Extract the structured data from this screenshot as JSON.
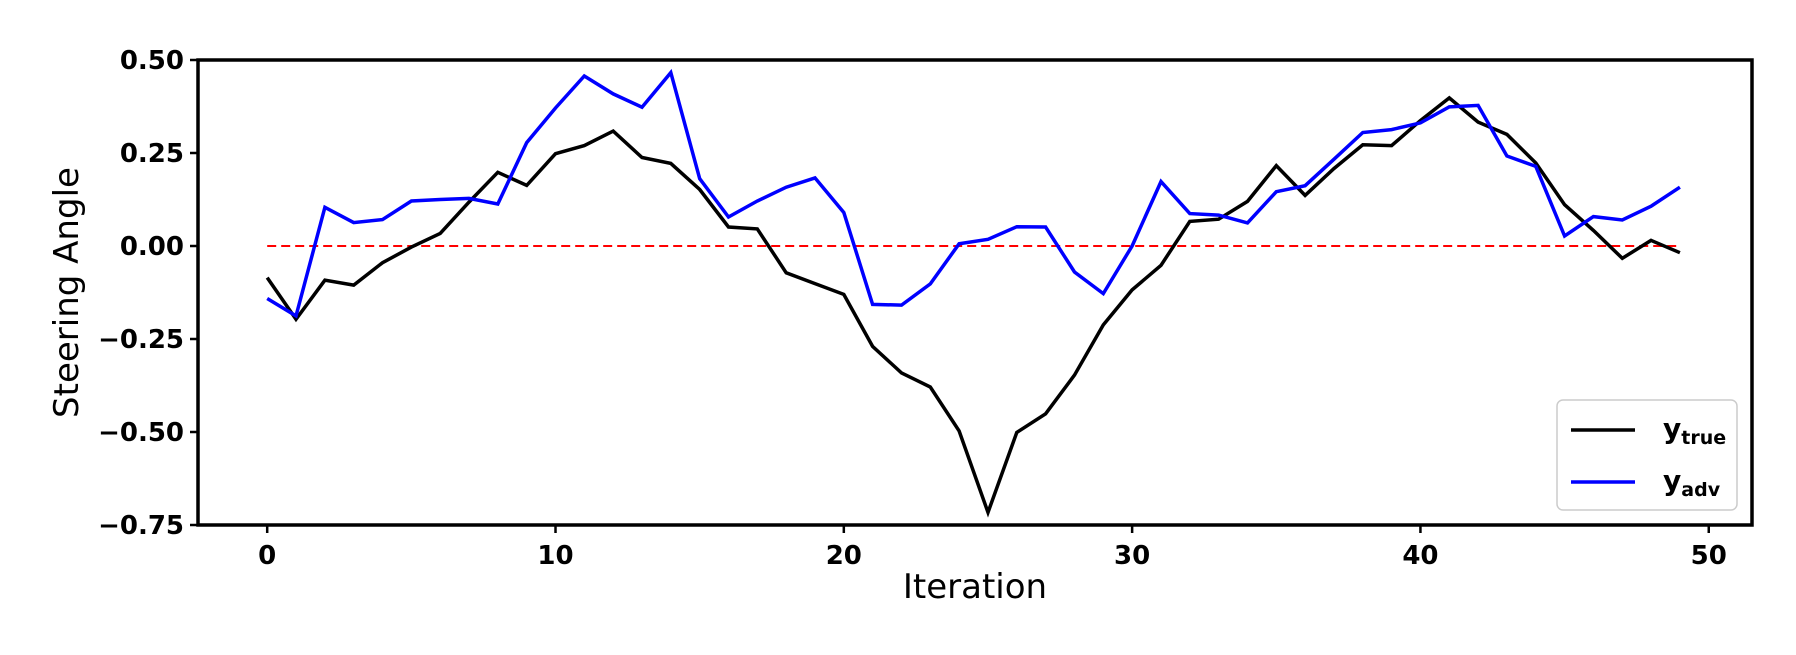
{
  "chart_data": {
    "type": "line",
    "title": "",
    "xlabel": "Iteration",
    "ylabel": "Steering Angle",
    "xlim": [
      -2.4,
      51.5
    ],
    "ylim": [
      -0.75,
      0.5
    ],
    "xticks": [
      0,
      10,
      20,
      30,
      40,
      50
    ],
    "xtick_labels": [
      "0",
      "10",
      "20",
      "30",
      "40",
      "50"
    ],
    "yticks": [
      -0.75,
      -0.5,
      -0.25,
      0.0,
      0.25,
      0.5
    ],
    "ytick_labels": [
      "−0.75",
      "−0.50",
      "−0.25",
      "0.00",
      "0.25",
      "0.50"
    ],
    "grid": false,
    "legend_position": "lower-right",
    "x": [
      0,
      1,
      2,
      3,
      4,
      5,
      6,
      7,
      8,
      9,
      10,
      11,
      12,
      13,
      14,
      15,
      16,
      17,
      18,
      19,
      20,
      21,
      22,
      23,
      24,
      25,
      26,
      27,
      28,
      29,
      30,
      31,
      32,
      33,
      34,
      35,
      36,
      37,
      38,
      39,
      40,
      41,
      42,
      43,
      44,
      45,
      46,
      47,
      48,
      49
    ],
    "series": [
      {
        "name": "y_true",
        "legend_main": "y",
        "legend_sub": "true",
        "color": "#000000",
        "values": [
          -0.085,
          -0.197,
          -0.092,
          -0.105,
          -0.045,
          -0.003,
          0.034,
          0.118,
          0.198,
          0.163,
          0.248,
          0.27,
          0.309,
          0.238,
          0.222,
          0.152,
          0.051,
          0.046,
          -0.072,
          -0.101,
          -0.13,
          -0.27,
          -0.341,
          -0.379,
          -0.497,
          -0.716,
          -0.501,
          -0.451,
          -0.347,
          -0.212,
          -0.118,
          -0.052,
          0.066,
          0.072,
          0.12,
          0.216,
          0.136,
          0.208,
          0.272,
          0.27,
          0.337,
          0.398,
          0.333,
          0.3,
          0.223,
          0.111,
          0.042,
          -0.033,
          0.015,
          -0.018
        ]
      },
      {
        "name": "y_adv",
        "legend_main": "y",
        "legend_sub": "adv",
        "color": "#0000ff",
        "values": [
          -0.141,
          -0.188,
          0.104,
          0.063,
          0.071,
          0.121,
          0.125,
          0.128,
          0.113,
          0.278,
          0.371,
          0.457,
          0.409,
          0.373,
          0.466,
          0.181,
          0.078,
          0.121,
          0.158,
          0.183,
          0.09,
          -0.157,
          -0.159,
          -0.102,
          0.006,
          0.018,
          0.052,
          0.051,
          -0.07,
          -0.128,
          0.0,
          0.173,
          0.087,
          0.083,
          0.062,
          0.146,
          0.162,
          0.233,
          0.305,
          0.313,
          0.331,
          0.374,
          0.378,
          0.242,
          0.214,
          0.027,
          0.079,
          0.07,
          0.107,
          0.158
        ]
      }
    ],
    "reference_line": {
      "y": 0.0,
      "style": "dashed",
      "color": "#ff0000"
    }
  }
}
